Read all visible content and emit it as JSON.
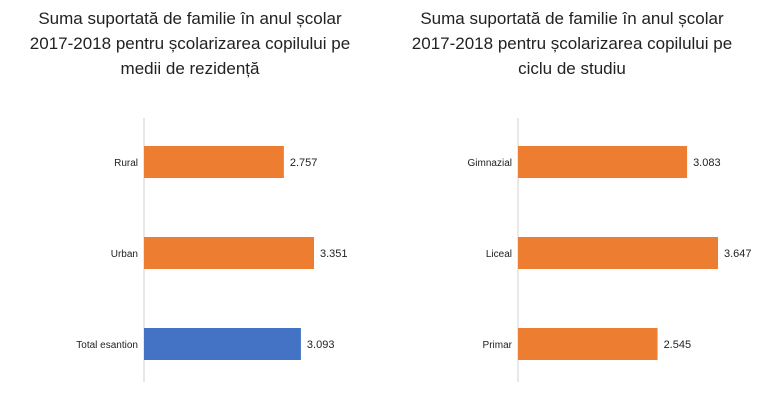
{
  "chart_data": [
    {
      "type": "bar",
      "orientation": "horizontal",
      "title_lines": [
        "Suma suportată de familie în anul școlar",
        "2017-2018 pentru școlarizarea copilului pe",
        "medii de rezidență"
      ],
      "categories": [
        "Rural",
        "Urban",
        "Total esantion"
      ],
      "values": [
        2.757,
        3.351,
        3.093
      ],
      "value_labels": [
        "2.757",
        "3.351",
        "3.093"
      ],
      "bar_colors": [
        "#ED7D31",
        "#ED7D31",
        "#4472C4"
      ],
      "xlim": [
        0,
        4.5
      ],
      "grid": false
    },
    {
      "type": "bar",
      "orientation": "horizontal",
      "title_lines": [
        "Suma suportată de familie în anul școlar",
        "2017-2018 pentru școlarizarea copilului pe",
        "ciclu de studiu"
      ],
      "categories": [
        "Gimnazial",
        "Liceal",
        "Primar"
      ],
      "values": [
        3.083,
        3.647,
        2.545
      ],
      "value_labels": [
        "3.083",
        "3.647",
        "2.545"
      ],
      "bar_colors": [
        "#ED7D31",
        "#ED7D31",
        "#ED7D31"
      ],
      "xlim": [
        0,
        4.5
      ],
      "grid": false
    }
  ]
}
